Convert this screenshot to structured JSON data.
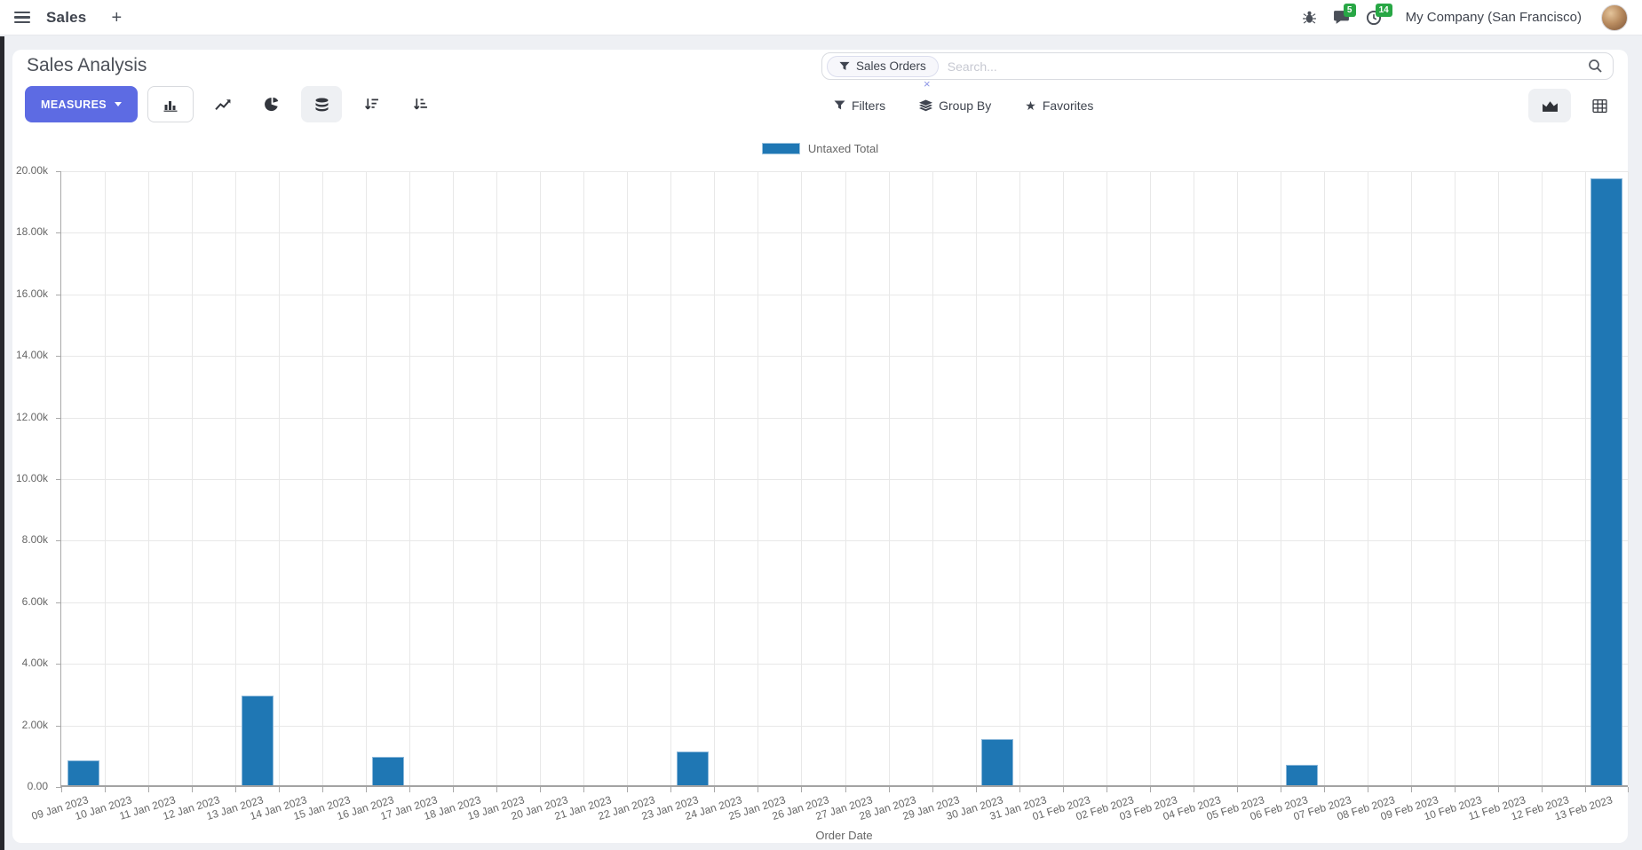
{
  "navbar": {
    "app_name": "Sales",
    "plus_label": "+",
    "messages_count": "5",
    "activities_count": "14",
    "company_name": "My Company (San Francisco)",
    "badge_color": "#28a745"
  },
  "control_panel": {
    "title": "Sales Analysis",
    "measures_button": "MEASURES",
    "accent_color": "#5d6be3",
    "search_facet": "Sales Orders",
    "facet_remove": "×",
    "search_placeholder": "Search...",
    "filters_label": "Filters",
    "group_by_label": "Group By",
    "favorites_label": "Favorites"
  },
  "icons": [
    "menu-icon",
    "plus-icon",
    "bug-icon",
    "messages-icon",
    "activities-clock-icon",
    "bar-chart-icon",
    "line-chart-icon",
    "pie-chart-icon",
    "stacked-icon",
    "sort-descending-icon",
    "sort-ascending-icon",
    "filter-funnel-icon",
    "group-by-layers-icon",
    "favorites-star-icon",
    "search-magnifier-icon",
    "graph-view-icon",
    "pivot-view-icon"
  ],
  "chart_data": {
    "type": "bar",
    "title": "",
    "legend_position": "top",
    "grid": true,
    "xlabel": "Order Date",
    "ylabel": "",
    "ylim": [
      0,
      20000
    ],
    "ytick_labels": [
      "0.00",
      "2.00k",
      "4.00k",
      "6.00k",
      "8.00k",
      "10.00k",
      "12.00k",
      "14.00k",
      "16.00k",
      "18.00k",
      "20.00k"
    ],
    "categories": [
      "09 Jan 2023",
      "10 Jan 2023",
      "11 Jan 2023",
      "12 Jan 2023",
      "13 Jan 2023",
      "14 Jan 2023",
      "15 Jan 2023",
      "16 Jan 2023",
      "17 Jan 2023",
      "18 Jan 2023",
      "19 Jan 2023",
      "20 Jan 2023",
      "21 Jan 2023",
      "22 Jan 2023",
      "23 Jan 2023",
      "24 Jan 2023",
      "25 Jan 2023",
      "26 Jan 2023",
      "27 Jan 2023",
      "28 Jan 2023",
      "29 Jan 2023",
      "30 Jan 2023",
      "31 Jan 2023",
      "01 Feb 2023",
      "02 Feb 2023",
      "03 Feb 2023",
      "04 Feb 2023",
      "05 Feb 2023",
      "06 Feb 2023",
      "07 Feb 2023",
      "08 Feb 2023",
      "09 Feb 2023",
      "10 Feb 2023",
      "11 Feb 2023",
      "12 Feb 2023",
      "13 Feb 2023"
    ],
    "series": [
      {
        "name": "Untaxed Total",
        "color": "#1f77b4",
        "values": [
          800,
          0,
          0,
          0,
          2900,
          0,
          0,
          910,
          0,
          0,
          0,
          0,
          0,
          0,
          1090,
          0,
          0,
          0,
          0,
          0,
          0,
          1510,
          0,
          0,
          0,
          0,
          0,
          0,
          660,
          0,
          0,
          0,
          0,
          0,
          0,
          19710
        ]
      }
    ]
  }
}
